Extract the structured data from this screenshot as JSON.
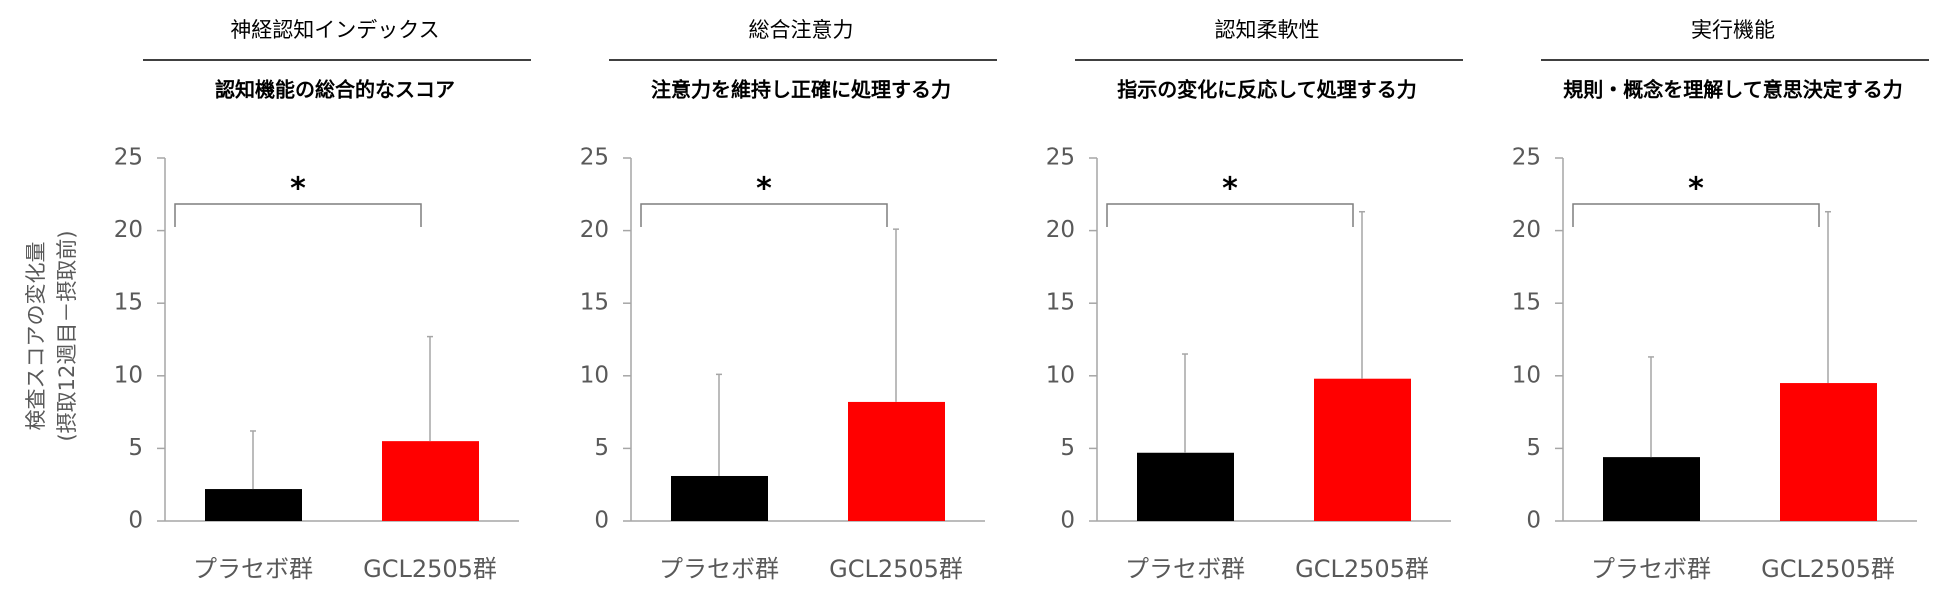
{
  "chart_data": [
    {
      "type": "bar",
      "title": "神経認知インデックス",
      "subtitle": "認知機能の総合的なスコア",
      "ylabel": [
        "検査スコアの変化量",
        "(摂取12週目－摂取前)"
      ],
      "categories": [
        "プラセボ群",
        "GCL2505群"
      ],
      "values": [
        2.2,
        5.5
      ],
      "errors": [
        4.0,
        7.2
      ],
      "colors": [
        "#000000",
        "#ff0000"
      ],
      "ylim": [
        0,
        25
      ],
      "yticks": [
        0,
        5,
        10,
        15,
        20,
        25
      ],
      "annotation": "*"
    },
    {
      "type": "bar",
      "title": "総合注意力",
      "subtitle": "注意力を維持し正確に処理する力",
      "categories": [
        "プラセボ群",
        "GCL2505群"
      ],
      "values": [
        3.1,
        8.2
      ],
      "errors": [
        7.0,
        11.9
      ],
      "colors": [
        "#000000",
        "#ff0000"
      ],
      "ylim": [
        0,
        25
      ],
      "yticks": [
        0,
        5,
        10,
        15,
        20,
        25
      ],
      "annotation": "*"
    },
    {
      "type": "bar",
      "title": "認知柔軟性",
      "subtitle": "指示の変化に反応して処理する力",
      "categories": [
        "プラセボ群",
        "GCL2505群"
      ],
      "values": [
        4.7,
        9.8
      ],
      "errors": [
        6.8,
        11.5
      ],
      "colors": [
        "#000000",
        "#ff0000"
      ],
      "ylim": [
        0,
        25
      ],
      "yticks": [
        0,
        5,
        10,
        15,
        20,
        25
      ],
      "annotation": "*"
    },
    {
      "type": "bar",
      "title": "実行機能",
      "subtitle": "規則・概念を理解して意思決定する力",
      "categories": [
        "プラセボ群",
        "GCL2505群"
      ],
      "values": [
        4.4,
        9.5
      ],
      "errors": [
        6.9,
        11.8
      ],
      "colors": [
        "#000000",
        "#ff0000"
      ],
      "ylim": [
        0,
        25
      ],
      "yticks": [
        0,
        5,
        10,
        15,
        20,
        25
      ],
      "annotation": "*"
    }
  ]
}
